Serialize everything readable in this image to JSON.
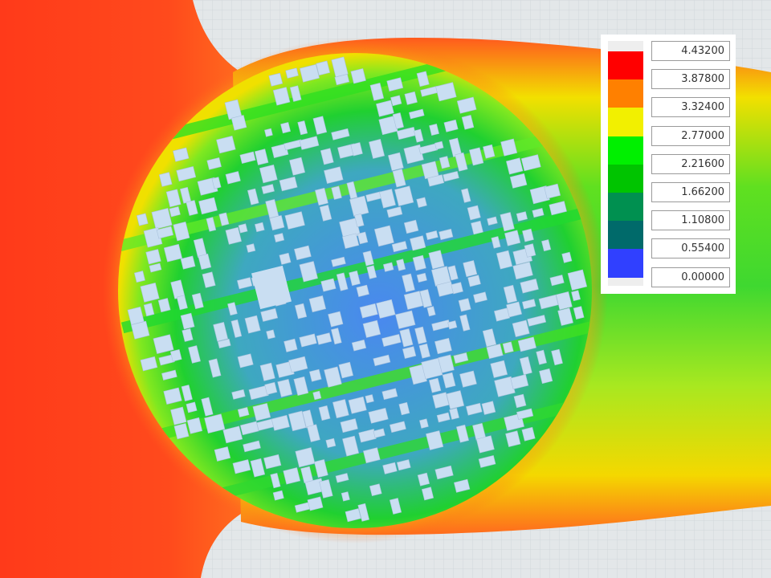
{
  "legend": {
    "values": [
      "4.43200",
      "3.87800",
      "3.32400",
      "2.77000",
      "2.21600",
      "1.66200",
      "1.10800",
      "0.55400",
      "0.00000"
    ],
    "colors": [
      "#ff0000",
      "#ff8000",
      "#f2f000",
      "#00f000",
      "#00c400",
      "#009050",
      "#006a6a",
      "#3040ff"
    ]
  },
  "theme": {
    "background": "#e3e7e9",
    "building": "#c9def2"
  }
}
